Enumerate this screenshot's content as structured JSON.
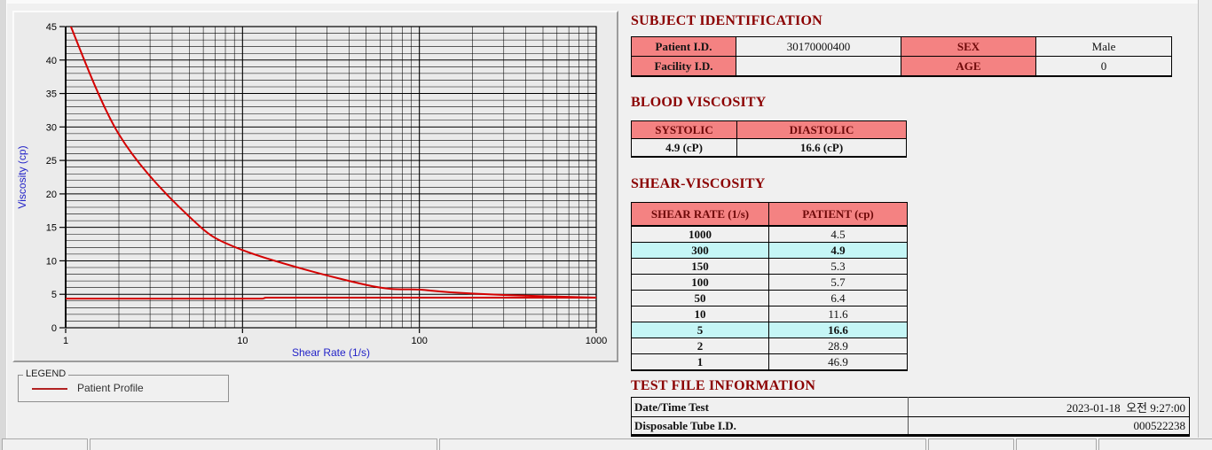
{
  "colors": {
    "accent_pink": "#f48282",
    "highlight_cyan": "#c5f6f6",
    "title_maroon": "#8b0000",
    "curve_red": "#d40000",
    "axis_blue": "#2323c8"
  },
  "chart_data": {
    "type": "line",
    "title": "",
    "xlabel": "Shear Rate (1/s)",
    "ylabel": "Viscosity (cp)",
    "x_scale": "log",
    "xlim": [
      1,
      1000
    ],
    "ylim": [
      0,
      45
    ],
    "x_ticks": [
      1,
      10,
      100,
      1000
    ],
    "y_ticks": [
      0,
      5,
      10,
      15,
      20,
      25,
      30,
      35,
      40,
      45
    ],
    "grid": "dense: horizontal every 1 cp, vertical at log minor positions",
    "legend_position": "groupbox below chart, left",
    "series": [
      {
        "name": "Patient Profile",
        "color": "#d40000",
        "smooth": true,
        "x": [
          1,
          2,
          5,
          10,
          50,
          100,
          150,
          300,
          1000
        ],
        "y": [
          46.9,
          28.9,
          16.6,
          11.6,
          6.4,
          5.7,
          5.3,
          4.9,
          4.5
        ]
      },
      {
        "name": "baseline",
        "color": "#d40000",
        "smooth": false,
        "x": [
          1,
          13,
          13.5,
          1000
        ],
        "y": [
          4.35,
          4.35,
          4.5,
          4.5
        ]
      }
    ]
  },
  "legend": {
    "box_label": "LEGEND",
    "series_label": "Patient Profile"
  },
  "sections": {
    "subject": {
      "title": "SUBJECT IDENTIFICATION",
      "rows": [
        {
          "label1": "Patient I.D.",
          "value1": "30170000400",
          "label2": "SEX",
          "value2": "Male"
        },
        {
          "label1": "Facility I.D.",
          "value1": "",
          "label2": "AGE",
          "value2": "0"
        }
      ]
    },
    "blood_viscosity": {
      "title": "BLOOD VISCOSITY",
      "headers": [
        "SYSTOLIC",
        "DIASTOLIC"
      ],
      "values": [
        "4.9 (cP)",
        "16.6 (cP)"
      ]
    },
    "shear_viscosity": {
      "title": "SHEAR-VISCOSITY",
      "headers": [
        "SHEAR RATE (1/s)",
        "PATIENT (cp)"
      ],
      "rows": [
        {
          "shear_rate": "1000",
          "patient": "4.5",
          "highlight": false
        },
        {
          "shear_rate": "300",
          "patient": "4.9",
          "highlight": true
        },
        {
          "shear_rate": "150",
          "patient": "5.3",
          "highlight": false
        },
        {
          "shear_rate": "100",
          "patient": "5.7",
          "highlight": false
        },
        {
          "shear_rate": "50",
          "patient": "6.4",
          "highlight": false
        },
        {
          "shear_rate": "10",
          "patient": "11.6",
          "highlight": false
        },
        {
          "shear_rate": "5",
          "patient": "16.6",
          "highlight": true
        },
        {
          "shear_rate": "2",
          "patient": "28.9",
          "highlight": false
        },
        {
          "shear_rate": "1",
          "patient": "46.9",
          "highlight": false
        }
      ]
    },
    "test_file": {
      "title": "TEST FILE INFORMATION",
      "rows": [
        {
          "label": "Date/Time Test",
          "value": "2023-01-18  오전 9:27:00"
        },
        {
          "label": "Disposable Tube I.D.",
          "value": "000522238"
        }
      ]
    }
  }
}
